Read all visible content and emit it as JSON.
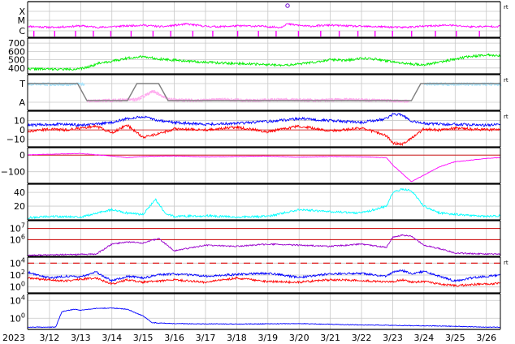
{
  "chart_data": {
    "type": "line",
    "year_label": "2023",
    "x_dates": [
      "3/12",
      "3/13",
      "3/14",
      "3/15",
      "3/16",
      "3/17",
      "3/18",
      "3/19",
      "3/20",
      "3/21",
      "3/22",
      "3/23",
      "3/24",
      "3/25",
      "3/26"
    ],
    "x_range_days": [
      11.3,
      26.45
    ],
    "colors": {
      "magenta": "#ff00ff",
      "green": "#00ee00",
      "cyan": "#00ffff",
      "light_blue": "#aae6ff",
      "pink": "#ffaaee",
      "gray": "#808080",
      "blue": "#0000ff",
      "red": "#ff0000",
      "purple": "#9900cc",
      "grid": "#c8c8c8"
    },
    "panels": [
      {
        "id": "xray-class",
        "y_ticks": [
          "X",
          "M",
          "C"
        ],
        "right_tag": "rt",
        "series": [
          {
            "color": "magenta",
            "x": [
              11.3,
              12.1,
              12.5,
              13.0,
              13.6,
              14.2,
              15.0,
              15.6,
              16.4,
              17.0,
              17.4,
              18.1,
              18.8,
              19.4,
              19.6,
              20.3,
              21.0,
              21.8,
              22.6,
              23.3,
              24.0,
              24.8,
              25.5,
              26.45
            ],
            "y": [
              0.2,
              0.15,
              0.18,
              0.22,
              0.15,
              0.2,
              0.25,
              0.18,
              0.3,
              0.2,
              0.18,
              0.22,
              0.2,
              0.15,
              0.3,
              0.2,
              0.25,
              0.2,
              0.18,
              0.15,
              0.2,
              0.25,
              0.18,
              0.2
            ]
          }
        ],
        "flare_marker": {
          "x": 19.63,
          "y": 1.0
        }
      },
      {
        "id": "solar-wind-speed",
        "y_ticks": [
          "700",
          "600",
          "500",
          "400"
        ],
        "y_range": [
          330,
          760
        ],
        "series": [
          {
            "color": "green",
            "x": [
              11.3,
              12.5,
              13.0,
              13.3,
              13.6,
              14.0,
              14.5,
              15.0,
              15.5,
              16.5,
              17.5,
              18.5,
              19.5,
              20.5,
              21.0,
              21.5,
              22.0,
              22.5,
              23.0,
              23.5,
              24.0,
              24.5,
              25.0,
              25.5,
              26.0,
              26.45
            ],
            "y": [
              390,
              385,
              390,
              420,
              460,
              480,
              520,
              540,
              510,
              480,
              460,
              450,
              430,
              470,
              500,
              490,
              520,
              505,
              470,
              450,
              440,
              470,
              510,
              540,
              560,
              550
            ]
          }
        ]
      },
      {
        "id": "imf-direction",
        "y_ticks": [
          "T",
          "A"
        ],
        "right_tag": "rt",
        "series": [
          {
            "color": "light_blue",
            "x": [
              11.3,
              11.8,
              12.3,
              12.8,
              13.1
            ],
            "y": [
              1,
              1,
              1,
              1,
              1
            ]
          },
          {
            "color": "pink",
            "x": [
              13.2,
              14.0,
              14.8,
              15.3,
              15.8,
              16.5,
              17.5,
              18.5,
              19.5,
              20.5,
              21.5,
              22.5,
              23.5
            ],
            "y": [
              0,
              0.05,
              0.1,
              0.6,
              0.1,
              0.05,
              0.1,
              0.05,
              0.1,
              0.05,
              0.1,
              0.05,
              0
            ]
          },
          {
            "color": "light_blue",
            "x": [
              24.0,
              24.5,
              25.0,
              25.5,
              26.0,
              26.45
            ],
            "y": [
              1,
              1,
              1,
              1,
              1,
              1
            ]
          },
          {
            "color": "gray",
            "x": [
              11.3,
              12.9,
              13.2,
              14.5,
              14.8,
              15.5,
              15.8,
              23.6,
              23.9,
              26.45
            ],
            "y": [
              1,
              1,
              0,
              0,
              1,
              1,
              0,
              0,
              1,
              1
            ]
          }
        ]
      },
      {
        "id": "imf-field",
        "y_ticks": [
          "10",
          "0",
          "−10"
        ],
        "y_range": [
          -18,
          20
        ],
        "right_tag": "rt",
        "series": [
          {
            "color": "blue",
            "x": [
              11.3,
              12.0,
              12.5,
              13.0,
              13.5,
              14.0,
              14.5,
              15.0,
              15.5,
              16.0,
              17.0,
              18.0,
              19.0,
              20.0,
              21.0,
              22.0,
              22.8,
              23.0,
              23.3,
              23.6,
              24.0,
              24.5,
              25.0,
              26.0,
              26.45
            ],
            "y": [
              5,
              6,
              6,
              5,
              6,
              8,
              12,
              14,
              10,
              8,
              6,
              7,
              9,
              12,
              10,
              8,
              12,
              17,
              16,
              9,
              7,
              6,
              6,
              5,
              6
            ]
          },
          {
            "color": "red",
            "x": [
              11.3,
              12.0,
              12.5,
              13.0,
              13.5,
              14.0,
              14.5,
              15.0,
              15.5,
              16.0,
              17.0,
              18.0,
              19.0,
              20.0,
              21.0,
              22.0,
              22.8,
              23.0,
              23.3,
              23.6,
              24.0,
              24.5,
              25.0,
              26.0,
              26.45
            ],
            "y": [
              -2,
              1,
              0,
              2,
              4,
              -3,
              5,
              -8,
              -4,
              1,
              0,
              3,
              -2,
              4,
              -1,
              2,
              -6,
              -14,
              -15,
              -9,
              1,
              0,
              2,
              0,
              1
            ]
          }
        ]
      },
      {
        "id": "dst-index",
        "y_ticks": [
          "0",
          "−100"
        ],
        "y_range": [
          -170,
          45
        ],
        "series": [
          {
            "color": "magenta",
            "x": [
              11.3,
              12.0,
              13.0,
              14.0,
              14.5,
              15.0,
              16.0,
              17.0,
              18.0,
              19.0,
              20.0,
              21.0,
              22.0,
              22.8,
              23.0,
              23.3,
              23.6,
              24.0,
              24.5,
              25.0,
              26.0,
              26.45
            ],
            "y": [
              2,
              5,
              10,
              -5,
              -15,
              -8,
              -5,
              -10,
              -8,
              -6,
              -12,
              -8,
              -10,
              -15,
              -60,
              -110,
              -160,
              -120,
              -70,
              -40,
              -20,
              -15
            ]
          }
        ]
      },
      {
        "id": "cyan-index",
        "y_ticks": [
          "40",
          "20"
        ],
        "y_range": [
          0,
          52
        ],
        "series": [
          {
            "color": "cyan",
            "x": [
              11.3,
              12.0,
              13.0,
              14.0,
              14.5,
              15.0,
              15.4,
              15.7,
              16.0,
              17.0,
              18.0,
              19.0,
              19.5,
              20.0,
              21.0,
              22.0,
              22.8,
              23.0,
              23.3,
              23.6,
              24.0,
              24.5,
              25.0,
              26.0,
              26.45
            ],
            "y": [
              3,
              5,
              4,
              15,
              10,
              8,
              30,
              10,
              5,
              6,
              4,
              5,
              10,
              15,
              12,
              10,
              20,
              40,
              45,
              42,
              20,
              10,
              8,
              5,
              6
            ]
          }
        ]
      },
      {
        "id": "electron-flux",
        "y_ticks": [
          "10^7",
          "10^6"
        ],
        "y_log_range": [
          4.5,
          7.7
        ],
        "thresholds": [
          7.0,
          6.0
        ],
        "series": [
          {
            "color": "purple",
            "x": [
              11.3,
              13.5,
              14.0,
              14.5,
              15.0,
              15.5,
              16.0,
              17.0,
              18.0,
              19.0,
              20.0,
              21.0,
              22.0,
              22.8,
              23.0,
              23.3,
              23.6,
              24.0,
              24.5,
              25.0,
              26.0,
              26.45
            ],
            "y": [
              4.6,
              4.7,
              5.6,
              5.8,
              5.7,
              6.1,
              5.0,
              5.5,
              5.4,
              5.6,
              5.5,
              5.4,
              5.6,
              5.3,
              6.2,
              6.4,
              6.3,
              5.5,
              5.2,
              4.8,
              4.7,
              4.7
            ]
          }
        ]
      },
      {
        "id": "proton-flux",
        "y_ticks": [
          "10^4",
          "10^2",
          "10^0"
        ],
        "y_log_range": [
          -1.0,
          5.0
        ],
        "threshold": 4.0,
        "right_tag": "rt",
        "series": [
          {
            "color": "blue",
            "x": [
              11.3,
              12.0,
              12.5,
              13.0,
              13.5,
              14.0,
              14.5,
              15.0,
              15.5,
              16.0,
              17.0,
              18.0,
              19.0,
              20.0,
              21.0,
              22.0,
              22.8,
              23.0,
              23.3,
              23.6,
              24.0,
              24.5,
              25.0,
              25.5,
              26.0,
              26.45
            ],
            "y": [
              2.5,
              1.5,
              1.8,
              1.7,
              2.5,
              1.0,
              1.8,
              1.5,
              2.0,
              2.2,
              1.8,
              2.1,
              2.3,
              1.6,
              2.2,
              2.3,
              1.8,
              2.5,
              2.8,
              2.2,
              2.6,
              1.8,
              1.0,
              1.5,
              1.8,
              2.0
            ]
          },
          {
            "color": "red",
            "x": [
              11.3,
              12.0,
              12.5,
              13.0,
              13.5,
              14.0,
              14.5,
              15.0,
              15.5,
              16.0,
              17.0,
              18.0,
              19.0,
              20.0,
              21.0,
              22.0,
              22.8,
              23.0,
              23.3,
              23.6,
              24.0,
              24.5,
              25.0,
              25.5,
              26.0,
              26.45
            ],
            "y": [
              1.5,
              1.2,
              1.0,
              1.3,
              1.5,
              0.5,
              1.2,
              0.8,
              1.0,
              1.2,
              0.8,
              1.5,
              0.9,
              0.8,
              1.2,
              1.1,
              0.8,
              0.9,
              1.2,
              0.8,
              0.9,
              0.5,
              0.2,
              0.4,
              0.5,
              0.6
            ]
          }
        ]
      },
      {
        "id": "bottom-flux",
        "y_ticks": [
          "10^4",
          "10^0"
        ],
        "y_log_range": [
          -2.5,
          5.5
        ],
        "series": [
          {
            "color": "blue",
            "x": [
              11.3,
              12.2,
              12.4,
              12.8,
              13.0,
              13.5,
              14.0,
              14.5,
              15.0,
              15.3,
              16.0,
              18.0,
              20.0,
              22.0,
              23.0,
              24.0,
              25.0,
              26.0,
              26.45
            ],
            "y": [
              -2.0,
              -2.0,
              1.5,
              2.0,
              1.8,
              2.2,
              2.3,
              2.0,
              0.5,
              -1.0,
              -1.2,
              -1.3,
              -1.2,
              -1.5,
              -1.6,
              -1.7,
              -1.8,
              -2.0,
              -2.0
            ]
          }
        ]
      }
    ]
  }
}
